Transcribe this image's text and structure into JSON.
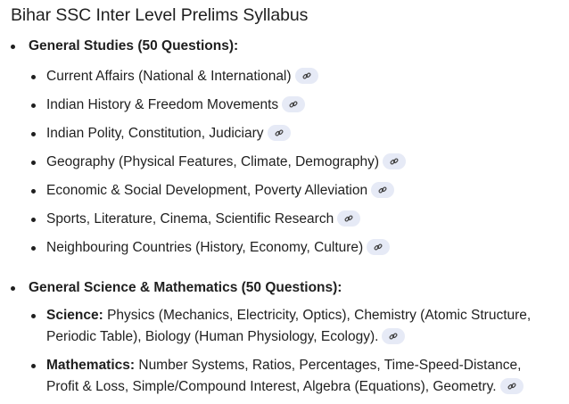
{
  "title": "Bihar SSC Inter Level Prelims Syllabus",
  "sections": [
    {
      "heading": "General Studies (50 Questions):",
      "items": [
        {
          "text": "Current Affairs (National & International)"
        },
        {
          "text": "Indian History & Freedom Movements"
        },
        {
          "text": "Indian Polity, Constitution, Judiciary"
        },
        {
          "text": "Geography (Physical Features, Climate, Demography)"
        },
        {
          "text": "Economic & Social Development, Poverty Alleviation"
        },
        {
          "text": "Sports, Literature, Cinema, Scientific Research"
        },
        {
          "text": "Neighbouring Countries (History, Economy, Culture)"
        }
      ]
    },
    {
      "heading": "General Science & Mathematics (50 Questions):",
      "items": [
        {
          "label": "Science:",
          "text": " Physics (Mechanics, Electricity, Optics), Chemistry (Atomic Structure, Periodic Table), Biology (Human Physiology, Ecology)."
        },
        {
          "label": "Mathematics:",
          "text": " Number Systems, Ratios, Percentages, Time-Speed-Distance, Profit & Loss, Simple/Compound Interest, Algebra (Equations), Geometry."
        }
      ]
    }
  ],
  "icons": {
    "source_chip": "link-icon"
  },
  "colors": {
    "chip_bg": "#e6eaf6"
  }
}
